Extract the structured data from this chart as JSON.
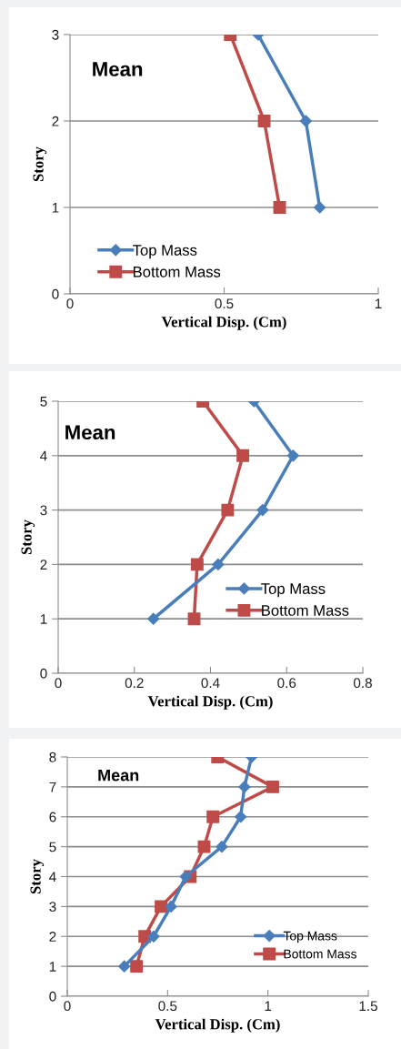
{
  "chart_data": [
    {
      "type": "line",
      "title": "Mean",
      "xlabel": "Vertical Disp. (Cm)",
      "ylabel": "Story",
      "xlim": [
        0,
        1
      ],
      "xticks": [
        0,
        0.5,
        1
      ],
      "ylim": [
        0,
        3
      ],
      "yticks": [
        0,
        1,
        2,
        3
      ],
      "grid": "y",
      "legend": "bottom left",
      "series": [
        {
          "name": "Top Mass",
          "color": "#4a7ebb",
          "marker": "diamond",
          "x": [
            0.81,
            0.765,
            0.61
          ],
          "values": [
            1,
            2,
            3
          ]
        },
        {
          "name": "Bottom Mass",
          "color": "#be4b48",
          "marker": "square",
          "x": [
            0.68,
            0.63,
            0.52
          ],
          "values": [
            1,
            2,
            3
          ]
        }
      ]
    },
    {
      "type": "line",
      "title": "Mean",
      "xlabel": "Vertical Disp. (Cm)",
      "ylabel": "Story",
      "xlim": [
        0,
        0.8
      ],
      "xticks": [
        0,
        0.2,
        0.4,
        0.6,
        0.8
      ],
      "ylim": [
        0,
        5
      ],
      "yticks": [
        0,
        1,
        2,
        3,
        4,
        5
      ],
      "grid": "y",
      "legend": "bottom right",
      "series": [
        {
          "name": "Top Mass",
          "color": "#4a7ebb",
          "marker": "diamond",
          "x": [
            0.25,
            0.42,
            0.537,
            0.617,
            0.514
          ],
          "values": [
            1,
            2,
            3,
            4,
            5
          ]
        },
        {
          "name": "Bottom Mass",
          "color": "#be4b48",
          "marker": "square",
          "x": [
            0.357,
            0.365,
            0.445,
            0.485,
            0.38
          ],
          "values": [
            1,
            2,
            3,
            4,
            5
          ]
        }
      ]
    },
    {
      "type": "line",
      "title": "Mean",
      "xlabel": "Vertical Disp. (Cm)",
      "ylabel": "Story",
      "xlim": [
        0,
        1.5
      ],
      "xticks": [
        0,
        0.5,
        1,
        1.5
      ],
      "ylim": [
        0,
        8
      ],
      "yticks": [
        0,
        1,
        2,
        3,
        4,
        5,
        6,
        7,
        8
      ],
      "grid": "y",
      "legend": "bottom right",
      "series": [
        {
          "name": "Top Mass",
          "color": "#4a7ebb",
          "marker": "diamond",
          "x": [
            0.284,
            0.43,
            0.517,
            0.59,
            0.77,
            0.864,
            0.883,
            0.918
          ],
          "values": [
            1,
            2,
            3,
            4,
            5,
            6,
            7,
            8
          ]
        },
        {
          "name": "Bottom Mass",
          "color": "#be4b48",
          "marker": "square",
          "x": [
            0.345,
            0.386,
            0.467,
            0.613,
            0.682,
            0.726,
            1.024,
            0.749
          ],
          "values": [
            1,
            2,
            3,
            4,
            5,
            6,
            7,
            8
          ]
        }
      ]
    }
  ]
}
